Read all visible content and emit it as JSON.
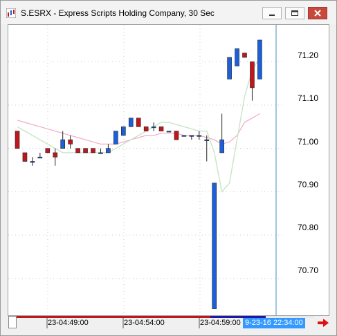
{
  "window": {
    "title": "S.ESRX - Express Scripts Holding Company, 30 Sec"
  },
  "y_axis": {
    "ticks": [
      "71.20",
      "71.10",
      "71.00",
      "70.90",
      "70.80",
      "70.70"
    ]
  },
  "x_axis": {
    "labels": [
      "23-04:49:00",
      "23-04:54:00",
      "23-04:59:00"
    ]
  },
  "cursor": {
    "time": "9-23-16 22:34:00"
  },
  "colors": {
    "up": "#1c5fd9",
    "down": "#c0171d",
    "ma_fast": "#c9e4c8",
    "ma_slow": "#f2a9c8",
    "cursor_line": "#3f8fbf"
  },
  "chart_data": {
    "type": "candlestick",
    "y_range": [
      70.615,
      71.285
    ],
    "candles": [
      {
        "o": 71.04,
        "h": 71.04,
        "l": 71.0,
        "c": 71.0
      },
      {
        "o": 70.99,
        "h": 70.99,
        "l": 70.97,
        "c": 70.97
      },
      {
        "o": 70.97,
        "h": 70.98,
        "l": 70.96,
        "c": 70.97
      },
      {
        "o": 70.98,
        "h": 70.99,
        "l": 70.98,
        "c": 70.98
      },
      {
        "o": 71.0,
        "h": 71.0,
        "l": 70.99,
        "c": 70.99
      },
      {
        "o": 70.99,
        "h": 71.0,
        "l": 70.96,
        "c": 70.98
      },
      {
        "o": 71.0,
        "h": 71.04,
        "l": 71.0,
        "c": 71.02
      },
      {
        "o": 71.02,
        "h": 71.03,
        "l": 71.0,
        "c": 71.01
      },
      {
        "o": 71.0,
        "h": 71.0,
        "l": 70.99,
        "c": 70.99
      },
      {
        "o": 71.0,
        "h": 71.0,
        "l": 70.99,
        "c": 70.99
      },
      {
        "o": 71.0,
        "h": 71.0,
        "l": 70.99,
        "c": 70.99
      },
      {
        "o": 70.99,
        "h": 71.0,
        "l": 70.99,
        "c": 70.99
      },
      {
        "o": 70.99,
        "h": 71.01,
        "l": 70.99,
        "c": 71.0
      },
      {
        "o": 71.01,
        "h": 71.04,
        "l": 71.01,
        "c": 71.04
      },
      {
        "o": 71.03,
        "h": 71.05,
        "l": 71.03,
        "c": 71.05
      },
      {
        "o": 71.05,
        "h": 71.07,
        "l": 71.05,
        "c": 71.07
      },
      {
        "o": 71.07,
        "h": 71.07,
        "l": 71.05,
        "c": 71.05
      },
      {
        "o": 71.05,
        "h": 71.05,
        "l": 71.04,
        "c": 71.04
      },
      {
        "o": 71.05,
        "h": 71.06,
        "l": 71.04,
        "c": 71.05
      },
      {
        "o": 71.05,
        "h": 71.05,
        "l": 71.04,
        "c": 71.04
      },
      {
        "o": 71.04,
        "h": 71.04,
        "l": 71.04,
        "c": 71.04
      },
      {
        "o": 71.04,
        "h": 71.04,
        "l": 71.02,
        "c": 71.02
      },
      {
        "o": 71.03,
        "h": 71.03,
        "l": 71.03,
        "c": 71.03
      },
      {
        "o": 71.03,
        "h": 71.03,
        "l": 71.02,
        "c": 71.03
      },
      {
        "o": 71.03,
        "h": 71.04,
        "l": 71.02,
        "c": 71.03
      },
      {
        "o": 71.02,
        "h": 71.03,
        "l": 70.97,
        "c": 71.02
      },
      {
        "o": 70.63,
        "h": 70.92,
        "l": 70.63,
        "c": 70.92
      },
      {
        "o": 70.99,
        "h": 71.08,
        "l": 70.99,
        "c": 71.02
      },
      {
        "o": 71.16,
        "h": 71.21,
        "l": 71.16,
        "c": 71.21
      },
      {
        "o": 71.19,
        "h": 71.23,
        "l": 71.19,
        "c": 71.23
      },
      {
        "o": 71.22,
        "h": 71.22,
        "l": 71.21,
        "c": 71.21
      },
      {
        "o": 71.2,
        "h": 71.2,
        "l": 71.11,
        "c": 71.14
      },
      {
        "o": 71.16,
        "h": 71.25,
        "l": 71.16,
        "c": 71.25
      }
    ],
    "ma_fast": [
      71.05,
      71.04,
      71.03,
      71.02,
      71.01,
      71.0,
      70.99,
      70.99,
      70.99,
      70.99,
      70.99,
      70.99,
      70.99,
      71.0,
      71.01,
      71.02,
      71.03,
      71.04,
      71.05,
      71.06,
      71.06,
      71.055,
      71.05,
      71.045,
      71.04,
      71.04,
      70.99,
      70.9,
      70.92,
      71.02,
      71.12,
      71.18,
      71.21
    ],
    "ma_slow": [
      71.065,
      71.06,
      71.055,
      71.05,
      71.045,
      71.04,
      71.035,
      71.03,
      71.025,
      71.02,
      71.015,
      71.01,
      71.01,
      71.01,
      71.015,
      71.02,
      71.025,
      71.03,
      71.03,
      71.035,
      71.035,
      71.035,
      71.03,
      71.03,
      71.03,
      71.025,
      71.02,
      71.01,
      71.015,
      71.03,
      71.06,
      71.07,
      71.08
    ]
  }
}
